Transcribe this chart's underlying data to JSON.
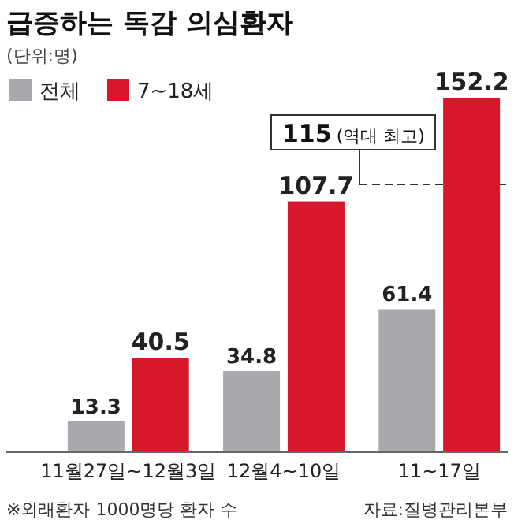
{
  "chart_data": {
    "type": "bar",
    "title": "급증하는 독감 의심환자",
    "subtitle": "(단위:명)",
    "categories": [
      "11월27일~12월3일",
      "12월4~10일",
      "11~17일"
    ],
    "series": [
      {
        "name": "전체",
        "color": "#a7a9ac",
        "values": [
          13.3,
          34.8,
          61.4
        ]
      },
      {
        "name": "7~18세",
        "color": "#d7182a",
        "values": [
          40.5,
          107.7,
          152.2
        ]
      }
    ],
    "data_labels": true,
    "legend": "top left",
    "ref_lines": [
      {
        "axis": "y",
        "value": 115,
        "label": "115 (역대 최고)",
        "line_style": "dashed",
        "color": "#333333"
      }
    ],
    "annotations": [
      "※외래환자 1000명당 환자 수",
      "자료:질병관리본부"
    ]
  }
}
